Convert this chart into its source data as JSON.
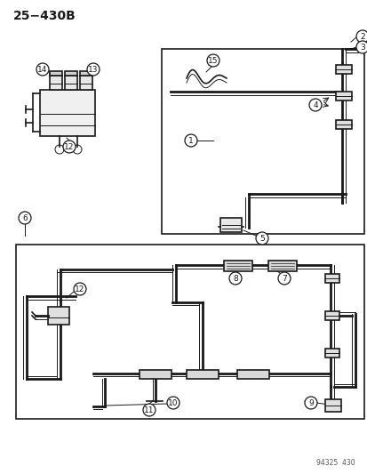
{
  "title": "25−430B",
  "footer": "94325  430",
  "bg_color": "#ffffff",
  "line_color": "#1a1a1a",
  "lw": 1.2,
  "lw_thin": 0.7,
  "lw_thick": 2.0
}
